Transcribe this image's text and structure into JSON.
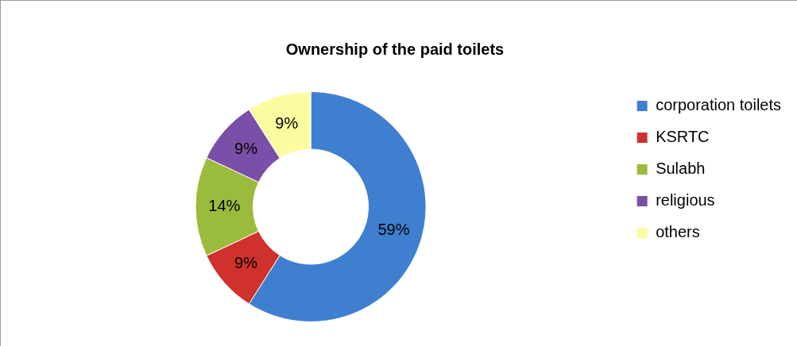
{
  "chart_data": {
    "type": "donut",
    "title": "Ownership of the paid toilets",
    "categories": [
      "corporation toilets",
      "KSRTC",
      "Sulabh",
      "religious",
      "others"
    ],
    "values": [
      59,
      9,
      14,
      9,
      9
    ],
    "value_labels": [
      "59%",
      "9%",
      "14%",
      "9%",
      "9%"
    ],
    "colors": [
      "#3f7fd0",
      "#d0312d",
      "#9bbb3c",
      "#7a4fa8",
      "#fbfba0"
    ],
    "legend": "right"
  }
}
